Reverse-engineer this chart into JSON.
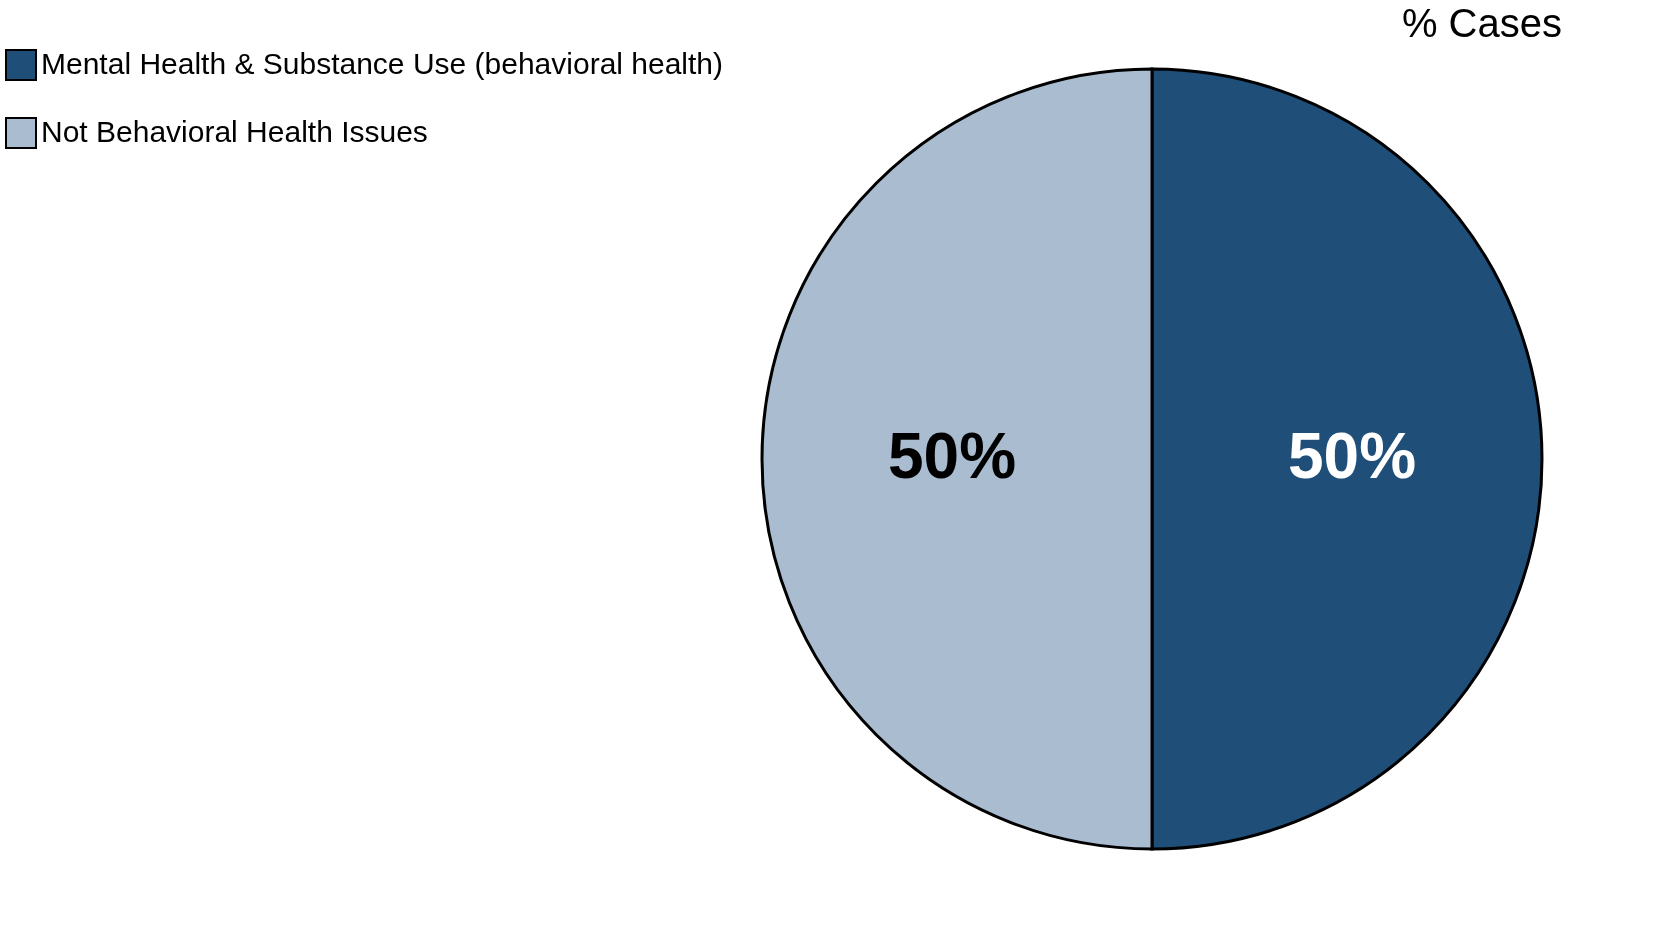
{
  "chart_data": {
    "type": "pie",
    "title": "% Cases",
    "categories": [
      "Mental Health & Substance Use (behavioral health)",
      "Not Behavioral Health Issues"
    ],
    "values": [
      50,
      50
    ],
    "colors": [
      "#1f4e79",
      "#a9bcd0"
    ],
    "value_labels": [
      "50%",
      "50%"
    ],
    "legend": "left"
  }
}
